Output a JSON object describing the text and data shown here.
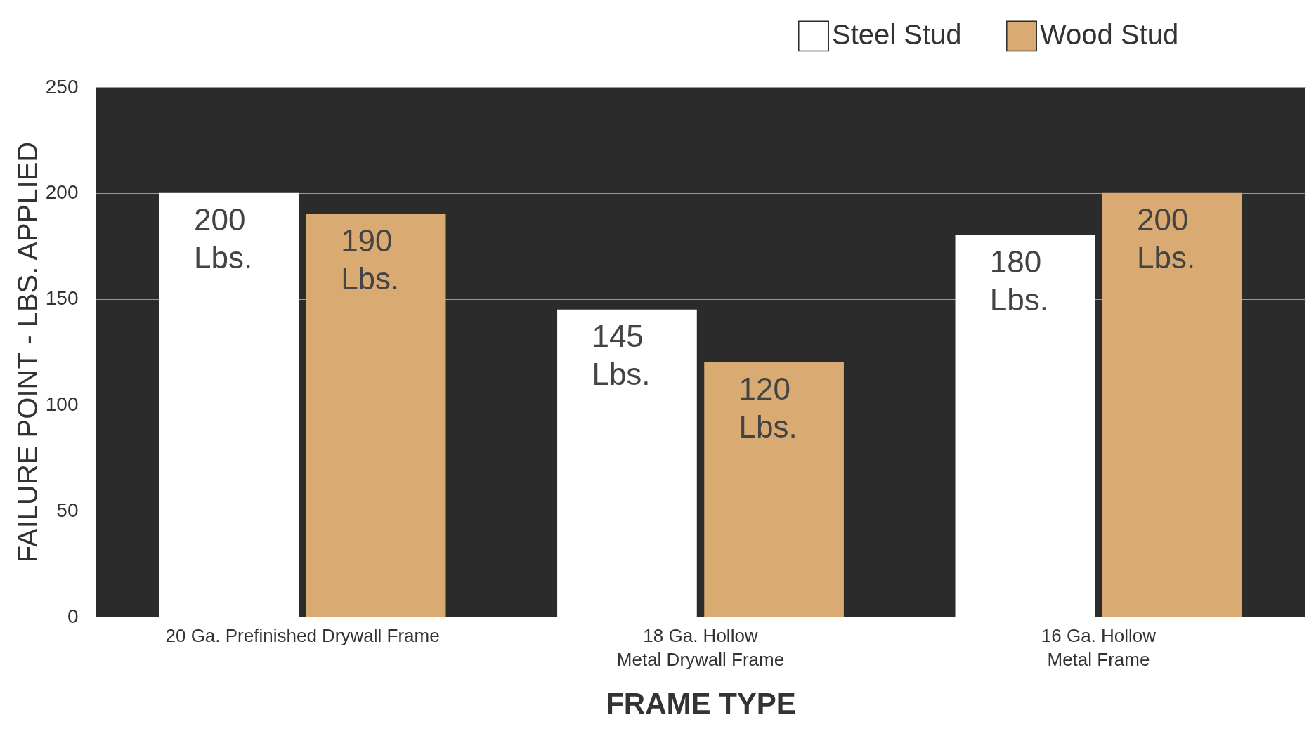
{
  "chart_data": {
    "type": "bar",
    "xlabel": "FRAME TYPE",
    "ylabel": "FAILURE POINT - LBS. APPLIED",
    "categories": [
      "20 Ga. Prefinished Drywall Frame",
      "18 Ga. Hollow\nMetal Drywall Frame",
      "16 Ga. Hollow\nMetal Frame"
    ],
    "series": [
      {
        "name": "Steel Stud",
        "color": "#ffffff",
        "values": [
          200,
          145,
          180
        ],
        "value_labels": [
          "200 Lbs.",
          "145 Lbs.",
          "180 Lbs."
        ]
      },
      {
        "name": "Wood Stud",
        "color": "#d9ab72",
        "values": [
          190,
          120,
          200
        ],
        "value_labels": [
          "190 Lbs.",
          "120 Lbs.",
          "200 Lbs."
        ]
      }
    ],
    "ylim": [
      0,
      250
    ],
    "yticks": [
      0,
      50,
      100,
      150,
      200,
      250
    ],
    "grid": "y",
    "legend": "top right"
  }
}
